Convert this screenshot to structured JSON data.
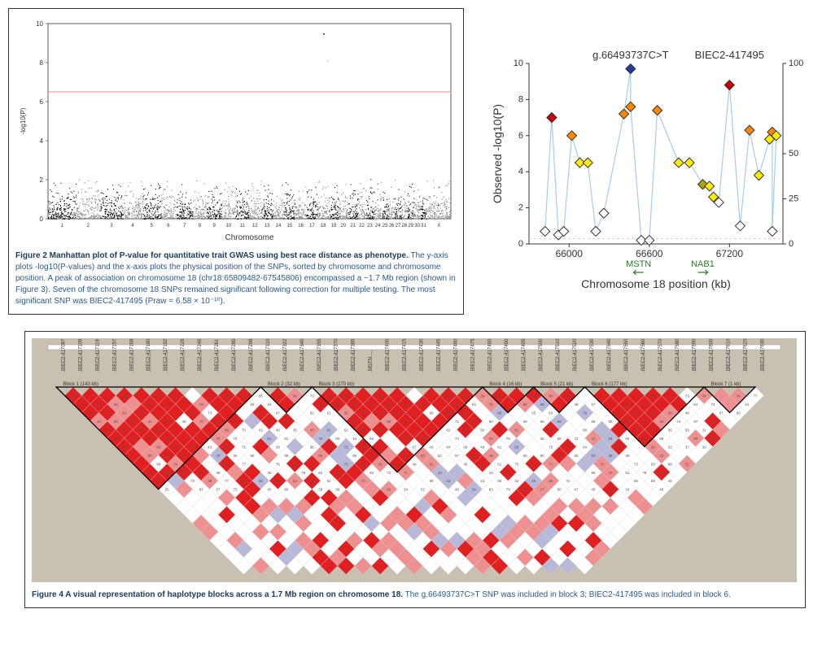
{
  "fig2": {
    "type": "scatter",
    "caption_bold": "Figure 2 Manhattan plot of P-value for quantitative trait GWAS using best race distance as phenotype.",
    "caption_rest": " The y-axis plots -log10(P-values) and the x-axis plots the physical position of the SNPs, sorted by chromosome and chromosome position. A peak of association on chromosome 18 (chr18:65809482-67545806) encompassed a ~1.7 Mb region (shown in Figure 3). Seven of the chromosome 18 SNPs remained significant following correction for multiple testing. The most significant SNP was BIEC2-417495 (Praw = 6.58 × 10⁻¹⁰).",
    "ylabel": "-log10(P)",
    "xlabel": "Chromosome",
    "background": "#ffffff",
    "threshold_color": "#ff9999",
    "threshold_y": 6.5,
    "ylim": [
      0,
      10
    ],
    "chromosomes": [
      1,
      2,
      3,
      4,
      5,
      6,
      7,
      8,
      9,
      10,
      11,
      12,
      13,
      14,
      15,
      16,
      17,
      18,
      19,
      20,
      21,
      22,
      23,
      24,
      25,
      26,
      27,
      28,
      29,
      30,
      31,
      "X"
    ],
    "chrom_widths": [
      35,
      30,
      28,
      25,
      22,
      20,
      20,
      18,
      18,
      18,
      16,
      16,
      14,
      14,
      14,
      14,
      14,
      14,
      12,
      12,
      12,
      10,
      10,
      10,
      8,
      8,
      8,
      8,
      8,
      8,
      8,
      30
    ],
    "colors": [
      "#000000",
      "#808080"
    ],
    "peak_chrom": 18,
    "peak_max": 9.5
  },
  "fig3": {
    "type": "scatter",
    "annotations": [
      {
        "text": "g.66493737C>T",
        "x": 66460,
        "y_above": 10.5
      },
      {
        "text": "BIEC2-417495",
        "x": 67200,
        "y_above": 10.5
      }
    ],
    "gene_labels": [
      {
        "text": "MSTN",
        "x": 66520,
        "arrow": "left"
      },
      {
        "text": "NAB1",
        "x": 67000,
        "arrow": "right"
      }
    ],
    "ylabel": "Observed -log10(P)",
    "y2label": "",
    "xlabel": "Chromosome 18 position (kb)",
    "ylim": [
      0,
      10
    ],
    "y2lim": [
      0,
      100
    ],
    "y1_ticks": [
      0,
      2,
      4,
      6,
      8,
      10
    ],
    "y2_ticks": [
      0,
      25,
      50,
      100
    ],
    "xlim": [
      65700,
      67600
    ],
    "xticks": [
      66000,
      66600,
      67200
    ],
    "line_color": "#a8cce8",
    "dash_color": "#cccccc",
    "points": [
      {
        "x": 65820,
        "y": 0.7,
        "color": "#ffffff",
        "stroke": "#333"
      },
      {
        "x": 65870,
        "y": 7.0,
        "color": "#ff6600",
        "stroke": "#333"
      },
      {
        "x": 65870,
        "y": 7.0,
        "color": "#cc0000",
        "stroke": "#333"
      },
      {
        "x": 65920,
        "y": 0.5,
        "color": "#ffffff",
        "stroke": "#333"
      },
      {
        "x": 65960,
        "y": 0.7,
        "color": "#ffffff",
        "stroke": "#333"
      },
      {
        "x": 66020,
        "y": 6.0,
        "color": "#ff8800",
        "stroke": "#333"
      },
      {
        "x": 66080,
        "y": 4.5,
        "color": "#ffee00",
        "stroke": "#333"
      },
      {
        "x": 66140,
        "y": 4.5,
        "color": "#ffee00",
        "stroke": "#333"
      },
      {
        "x": 66200,
        "y": 0.7,
        "color": "#ffffff",
        "stroke": "#333"
      },
      {
        "x": 66260,
        "y": 1.7,
        "color": "#ffffff",
        "stroke": "#333"
      },
      {
        "x": 66410,
        "y": 7.2,
        "color": "#ff8800",
        "stroke": "#333"
      },
      {
        "x": 66460,
        "y": 9.7,
        "color": "#2a3a8a",
        "stroke": "#1a2a6a"
      },
      {
        "x": 66460,
        "y": 7.6,
        "color": "#ff8800",
        "stroke": "#333"
      },
      {
        "x": 66540,
        "y": 0.2,
        "color": "#ffffff",
        "stroke": "#333"
      },
      {
        "x": 66600,
        "y": 0.2,
        "color": "#ffffff",
        "stroke": "#333"
      },
      {
        "x": 66660,
        "y": 7.4,
        "color": "#ff8800",
        "stroke": "#333"
      },
      {
        "x": 66820,
        "y": 4.5,
        "color": "#ffee00",
        "stroke": "#333"
      },
      {
        "x": 66900,
        "y": 4.5,
        "color": "#ffee00",
        "stroke": "#333"
      },
      {
        "x": 67000,
        "y": 3.3,
        "color": "#a8a800",
        "stroke": "#333"
      },
      {
        "x": 67050,
        "y": 3.2,
        "color": "#ffee00",
        "stroke": "#333"
      },
      {
        "x": 67080,
        "y": 2.6,
        "color": "#ffee00",
        "stroke": "#333"
      },
      {
        "x": 67120,
        "y": 2.3,
        "color": "#ffffff",
        "stroke": "#333"
      },
      {
        "x": 67200,
        "y": 8.8,
        "color": "#cc0000",
        "stroke": "#333"
      },
      {
        "x": 67280,
        "y": 1.0,
        "color": "#ffffff",
        "stroke": "#333"
      },
      {
        "x": 67350,
        "y": 6.3,
        "color": "#ff8800",
        "stroke": "#333"
      },
      {
        "x": 67420,
        "y": 3.8,
        "color": "#ffee00",
        "stroke": "#333"
      },
      {
        "x": 67500,
        "y": 5.8,
        "color": "#ffee00",
        "stroke": "#333"
      },
      {
        "x": 67520,
        "y": 6.2,
        "color": "#ff8800",
        "stroke": "#333"
      },
      {
        "x": 67520,
        "y": 0.7,
        "color": "#ffffff",
        "stroke": "#333"
      },
      {
        "x": 67550,
        "y": 6.0,
        "color": "#ffee00",
        "stroke": "#333"
      }
    ]
  },
  "fig4": {
    "type": "heatmap",
    "caption_bold": "Figure 4 A visual representation of haplotype blocks across a 1.7 Mb region on chromosome 18.",
    "caption_rest": " The g.66493737C>T SNP was included in block 3; BIEC2-417495 was included in block 6.",
    "background": "#c8c0b0",
    "panel_bg": "#ffffff",
    "block_labels": [
      "Block 1 (143 kb)",
      "Block 2 (32 kb)",
      "Block 3 (270 kb)",
      "Block 4 (16 kb)",
      "Block 5 (21 kb)",
      "Block 6 (177 kb)",
      "Block 7 (1 kb)"
    ],
    "snp_labels": [
      "BIEC2-417087",
      "BIEC2-417109",
      "BIEC2-417119",
      "BIEC2-417157",
      "BIEC2-417168",
      "BIEC2-417180",
      "BIEC2-417192",
      "BIEC2-417228",
      "BIEC2-417245",
      "BIEC2-417261",
      "BIEC2-417285",
      "BIEC2-417298",
      "BIEC2-417310",
      "BIEC2-417322",
      "BIEC2-417340",
      "BIEC2-417355",
      "BIEC2-417370",
      "BIEC2-417385",
      "MSTN",
      "BIEC2-417400",
      "BIEC2-417415",
      "BIEC2-417430",
      "BIEC2-417445",
      "BIEC2-417460",
      "BIEC2-417475",
      "BIEC2-417480",
      "BIEC2-417490",
      "BIEC2-417495",
      "BIEC2-417500",
      "BIEC2-417510",
      "BIEC2-417520",
      "BIEC2-417530",
      "BIEC2-417540",
      "BIEC2-417550",
      "BIEC2-417560",
      "BIEC2-417570",
      "BIEC2-417580",
      "BIEC2-417590",
      "BIEC2-417600",
      "BIEC2-417610",
      "BIEC2-417620",
      "BIEC2-417630"
    ],
    "colors": {
      "high": "#e02020",
      "med": "#ef9090",
      "low": "#ffffff",
      "alt": "#b8b8d8",
      "text": "#333333"
    }
  }
}
